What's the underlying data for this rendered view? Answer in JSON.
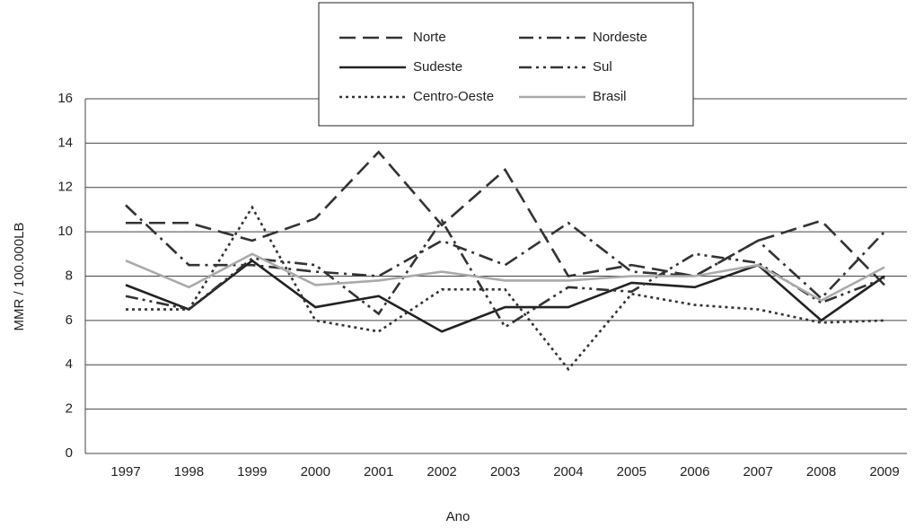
{
  "chart_data": {
    "type": "line",
    "x_label": "Ano",
    "y_label": "MMR / 100.000LB",
    "categories": [
      "1997",
      "1998",
      "1999",
      "2000",
      "2001",
      "2002",
      "2003",
      "2004",
      "2005",
      "2006",
      "2007",
      "2008",
      "2009"
    ],
    "series": [
      {
        "name": "Norte",
        "color": "#333333",
        "linestyle": "dashed",
        "values": [
          10.4,
          10.4,
          9.6,
          10.6,
          13.6,
          10.3,
          12.8,
          8.0,
          8.5,
          8.0,
          9.6,
          10.5,
          7.6
        ]
      },
      {
        "name": "Nordeste",
        "color": "#333333",
        "linestyle": "dashdot",
        "values": [
          11.2,
          8.5,
          8.5,
          8.2,
          8.0,
          9.6,
          8.5,
          10.4,
          8.2,
          8.0,
          9.6,
          7.0,
          10.0
        ]
      },
      {
        "name": "Sudeste",
        "color": "#222222",
        "linestyle": "solid",
        "values": [
          7.6,
          6.5,
          8.7,
          6.6,
          7.1,
          5.5,
          6.6,
          6.6,
          7.7,
          7.5,
          8.5,
          6.0,
          8.0
        ]
      },
      {
        "name": "Sul",
        "color": "#333333",
        "linestyle": "dashdotdot",
        "values": [
          7.1,
          6.5,
          8.8,
          8.5,
          6.3,
          10.5,
          5.7,
          7.5,
          7.3,
          9.0,
          8.6,
          6.8,
          7.9
        ]
      },
      {
        "name": "Centro-Oeste",
        "color": "#333333",
        "linestyle": "dotted",
        "values": [
          6.5,
          6.5,
          11.1,
          6.0,
          5.5,
          7.4,
          7.4,
          3.8,
          7.2,
          6.7,
          6.5,
          5.9,
          6.0
        ]
      },
      {
        "name": "Brasil",
        "color": "#aaaaaa",
        "linestyle": "solid",
        "values": [
          8.7,
          7.5,
          9.0,
          7.6,
          7.8,
          8.2,
          7.8,
          7.8,
          8.0,
          8.0,
          8.5,
          6.9,
          8.4
        ]
      }
    ],
    "ylim": [
      0,
      16
    ],
    "yticks": [
      0,
      2,
      4,
      6,
      8,
      10,
      12,
      14,
      16
    ],
    "grid": true,
    "legend": "top"
  }
}
